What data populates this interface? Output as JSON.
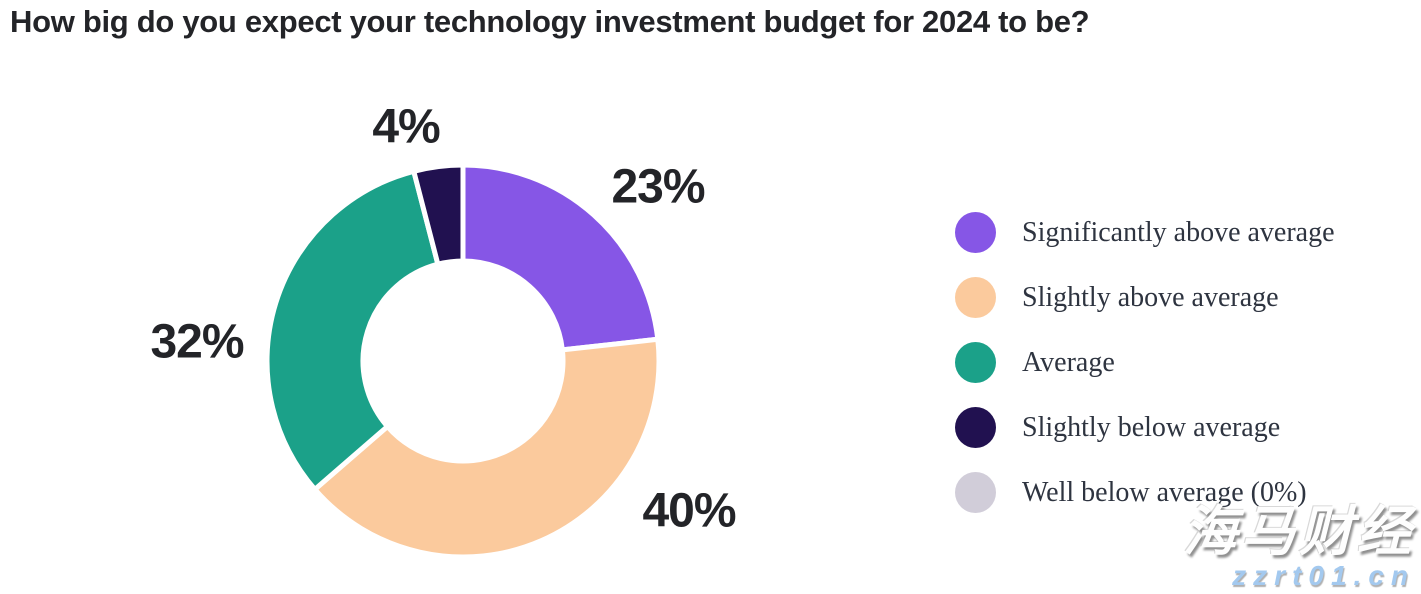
{
  "title": "How big do you expect your technology investment budget for 2024 to be?",
  "chart_data": {
    "type": "pie",
    "variant": "donut",
    "title": "How big do you expect your technology investment budget for 2024 to be?",
    "direction": "clockwise",
    "start_angle_deg": 0,
    "inner_radius_ratio": 0.51,
    "legend_position": "right",
    "slices": [
      {
        "label": "Significantly above average",
        "value": 23,
        "display": "23%",
        "color": "#8656e6"
      },
      {
        "label": "Slightly above average",
        "value": 40,
        "display": "40%",
        "color": "#fbca9d"
      },
      {
        "label": "Average",
        "value": 32,
        "display": "32%",
        "color": "#1ba189"
      },
      {
        "label": "Slightly below average",
        "value": 4,
        "display": "4%",
        "color": "#211150"
      },
      {
        "label": "Well below average (0%)",
        "value": 0,
        "display": "0%",
        "color": "#d1cdd9"
      }
    ]
  },
  "colors": {
    "title_text": "#232428",
    "legend_text": "#2e3440",
    "slice_gap": "#ffffff"
  },
  "watermark": {
    "line1": "海马财经",
    "line2": "zzrt01.cn",
    "line2_color": "#a3c9ef"
  }
}
